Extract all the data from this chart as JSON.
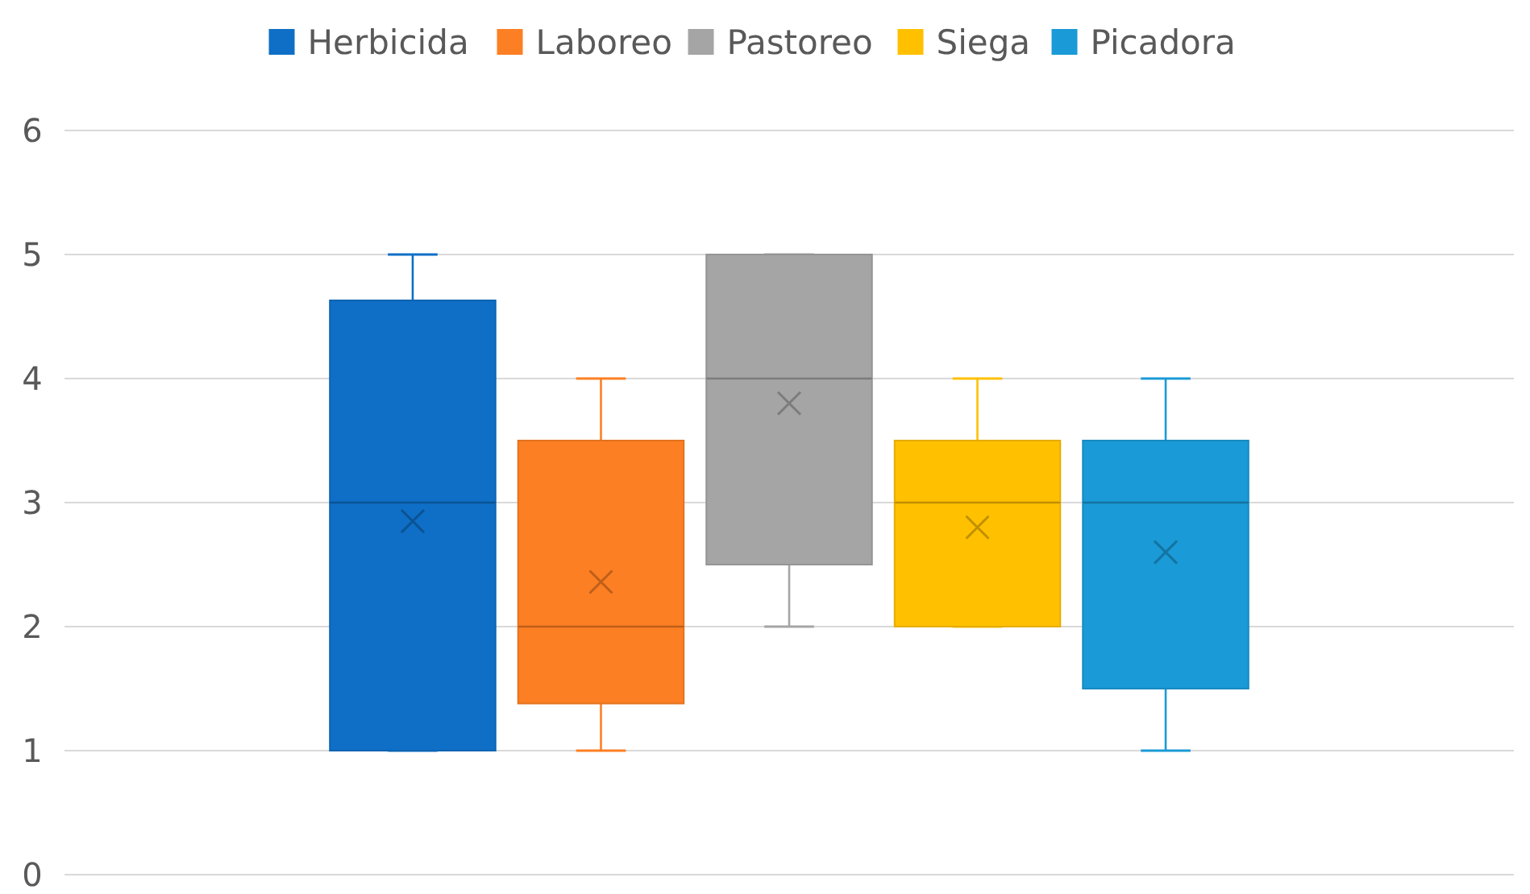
{
  "chart_data": {
    "type": "box",
    "categories": [
      null
    ],
    "ylim": [
      0,
      6
    ],
    "yticks": [
      0,
      1,
      2,
      3,
      4,
      5,
      6
    ],
    "grid": "y",
    "legend": "top",
    "marker": "cross",
    "series": [
      {
        "name": "Herbicida",
        "color": "#0f6fc6",
        "boxes": [
          {
            "low": 1,
            "q1": 1,
            "median": 3,
            "q3": 4.63,
            "high": 5,
            "mean": 2.85
          }
        ]
      },
      {
        "name": "Laboreo",
        "color": "#fd7f23",
        "boxes": [
          {
            "low": 1,
            "q1": 1.38,
            "median": 2,
            "q3": 3.5,
            "high": 4,
            "mean": 2.36
          }
        ]
      },
      {
        "name": "Pastoreo",
        "color": "#a5a5a5",
        "boxes": [
          {
            "low": 2,
            "q1": 2.5,
            "median": 4,
            "q3": 5,
            "high": 5,
            "mean": 3.8
          }
        ]
      },
      {
        "name": "Siega",
        "color": "#ffc000",
        "boxes": [
          {
            "low": 2,
            "q1": 2,
            "median": 3,
            "q3": 3.5,
            "high": 4,
            "mean": 2.8
          }
        ]
      },
      {
        "name": "Picadora",
        "color": "#1a9ad6",
        "boxes": [
          {
            "low": 1,
            "q1": 1.5,
            "median": 3,
            "q3": 3.5,
            "high": 4,
            "mean": 2.6
          }
        ]
      }
    ]
  }
}
